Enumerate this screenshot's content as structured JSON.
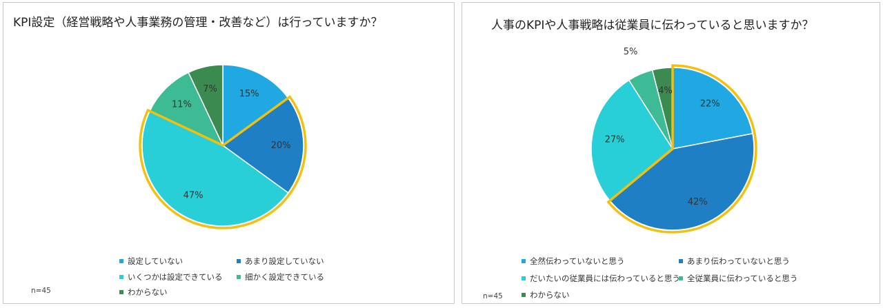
{
  "chart_data": [
    {
      "type": "pie",
      "title": "KPI設定（経営戦略や人事業務の管理・改善など）は行っていますか？",
      "note": "n=45",
      "series": [
        {
          "label": "設定していない",
          "value": 15,
          "display": "15%",
          "color": "#1fa8e1"
        },
        {
          "label": "あまり設定していない",
          "value": 20,
          "display": "20%",
          "color": "#1f7fc4"
        },
        {
          "label": "いくつかは設定できている",
          "value": 47,
          "display": "47%",
          "color": "#29cfd6"
        },
        {
          "label": "細かく設定できている",
          "value": 11,
          "display": "11%",
          "color": "#3dbb94"
        },
        {
          "label": "わからない",
          "value": 7,
          "display": "7%",
          "color": "#3b8a4f"
        }
      ],
      "highlight": [
        "あまり設定していない",
        "いくつかは設定できている"
      ],
      "highlight_color": "#f2c011",
      "legend_position": "bottom"
    },
    {
      "type": "pie",
      "title": "人事のKPIや人事戦略は従業員に伝わっていると思いますか？",
      "note": "n=45",
      "series": [
        {
          "label": "全然伝わっていないと思う",
          "value": 22,
          "display": "22%",
          "color": "#1fa8e1"
        },
        {
          "label": "あまり伝わっていないと思う",
          "value": 42,
          "display": "42%",
          "color": "#1f7fc4"
        },
        {
          "label": "だいたいの従業員には伝わっていると思う",
          "value": 27,
          "display": "27%",
          "color": "#29cfd6"
        },
        {
          "label": "全従業員に伝わっていると思う",
          "value": 5,
          "display": "5%",
          "color": "#3dbb94"
        },
        {
          "label": "わからない",
          "value": 4,
          "display": "4%",
          "color": "#3b8a4f"
        }
      ],
      "highlight": [
        "全然伝わっていないと思う",
        "あまり伝わっていないと思う"
      ],
      "highlight_color": "#f2c011",
      "legend_position": "bottom"
    }
  ]
}
